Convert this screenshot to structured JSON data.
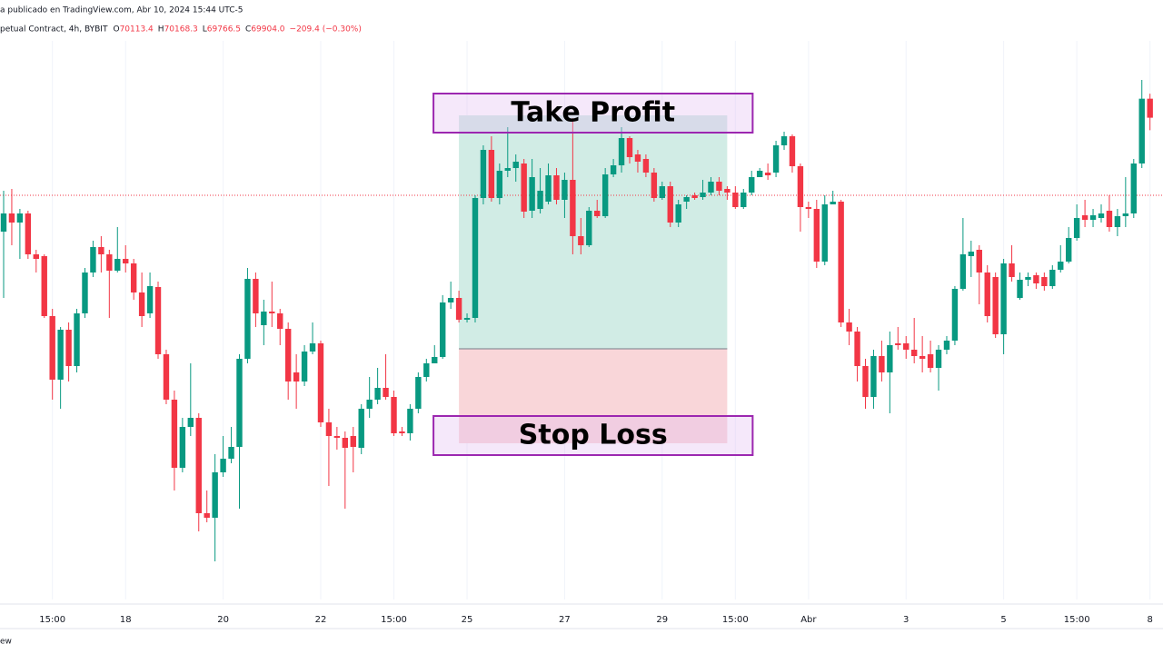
{
  "header": {
    "published": "a publicado en TradingView.com, Abr 10, 2024 15:44 UTC-5",
    "symbol": "petual Contract, 4h, BYBIT",
    "legend": [
      {
        "label": "O",
        "value": "70113.4"
      },
      {
        "label": "H",
        "value": "70168.3"
      },
      {
        "label": "L",
        "value": "69766.5"
      },
      {
        "label": "C",
        "value": "69904.0"
      }
    ],
    "change": "−209.4 (−0.30%)"
  },
  "footer": "ew",
  "chart_data": {
    "type": "candlestick",
    "up_color": "#089981",
    "down_color": "#f23645",
    "ylim": [
      64600,
      71200
    ],
    "xlim": [
      0,
      142.6
    ],
    "xticks": [
      {
        "value": 6,
        "label": "15:00"
      },
      {
        "value": 15,
        "label": "18"
      },
      {
        "value": 27,
        "label": "20"
      },
      {
        "value": 39,
        "label": "22"
      },
      {
        "value": 48,
        "label": "15:00"
      },
      {
        "value": 57,
        "label": "25"
      },
      {
        "value": 69,
        "label": "27"
      },
      {
        "value": 81,
        "label": "29"
      },
      {
        "value": 90,
        "label": "15:00"
      },
      {
        "value": 99,
        "label": "Abr"
      },
      {
        "value": 111,
        "label": "3"
      },
      {
        "value": 123,
        "label": "5"
      },
      {
        "value": 132,
        "label": "15:00"
      },
      {
        "value": 141,
        "label": "8"
      }
    ],
    "grid": true,
    "price_line": 69050,
    "position": {
      "start": 56,
      "end": 89,
      "take_profit": 69930,
      "entry": 67360,
      "stop_loss": 66320,
      "take_profit_label": "Take Profit",
      "stop_loss_label": "Stop Loss",
      "profit_color": "#d1ece5",
      "loss_color": "#f9d6d9",
      "label_color": "#9c27b0"
    },
    "open": [
      68650,
      68850,
      68750,
      68850,
      68400,
      68380,
      67720,
      67020,
      67570,
      67170,
      67750,
      68200,
      68480,
      68400,
      68220,
      68350,
      68300,
      67980,
      67750,
      68040,
      67300,
      66800,
      66050,
      66500,
      66600,
      65550,
      65500,
      66000,
      66150,
      66280,
      67250,
      68130,
      67620,
      67770,
      67750,
      67580,
      67100,
      67000,
      67330,
      67420,
      66550,
      66400,
      66380,
      66400,
      66270,
      66700,
      66800,
      66930,
      66830,
      66450,
      66430,
      66700,
      67050,
      67200,
      67270,
      67870,
      67920,
      67680,
      67700,
      69020,
      69550,
      69020,
      69320,
      69350,
      69400,
      68880,
      68900,
      68980,
      69270,
      69000,
      69220,
      68600,
      68500,
      68880,
      68820,
      69280,
      69380,
      69680,
      69500,
      69450,
      69300,
      69020,
      69150,
      68750,
      68980,
      69050,
      69030,
      69080,
      69200,
      69120,
      69080,
      68920,
      69080,
      69250,
      69300,
      69300,
      69600,
      69700,
      69370,
      68920,
      68900,
      68320,
      68950,
      68980,
      67650,
      67550,
      67170,
      66830,
      67280,
      67100,
      67420,
      67420,
      67350,
      67280,
      67300,
      67150,
      67350,
      67450,
      68020,
      68380,
      68450,
      68200,
      68150,
      67520,
      68300,
      67920,
      68120,
      68170,
      68150,
      68050,
      68230,
      68320,
      68580,
      68830,
      68780,
      68800,
      68880,
      68700,
      68820,
      68850,
      69400,
      70113.4
    ],
    "high": [
      69100,
      69120,
      68900,
      68880,
      68450,
      68400,
      67800,
      67600,
      67650,
      67800,
      68250,
      68550,
      68600,
      68450,
      68700,
      68500,
      68350,
      68200,
      68200,
      68100,
      67350,
      66900,
      66600,
      67200,
      66650,
      65800,
      66200,
      66400,
      66500,
      67300,
      68250,
      68200,
      67900,
      68100,
      67800,
      67650,
      67300,
      67400,
      67650,
      67450,
      66700,
      66500,
      66450,
      66500,
      66750,
      67050,
      67150,
      67300,
      66900,
      66500,
      66750,
      67100,
      67250,
      67400,
      67950,
      68100,
      68000,
      67750,
      69050,
      69600,
      69700,
      69400,
      69800,
      69500,
      69450,
      69450,
      69350,
      69400,
      69350,
      69300,
      69900,
      68800,
      68920,
      69000,
      69350,
      69450,
      69800,
      69700,
      69550,
      69500,
      69350,
      69200,
      69200,
      69000,
      69050,
      69080,
      69220,
      69250,
      69250,
      69150,
      69150,
      69120,
      69320,
      69350,
      69400,
      69650,
      69750,
      69720,
      69400,
      68980,
      69000,
      69050,
      69100,
      69000,
      67800,
      67600,
      67250,
      67350,
      67450,
      67550,
      67600,
      67500,
      67700,
      67500,
      67450,
      67400,
      67500,
      68050,
      68800,
      68550,
      68500,
      68280,
      68200,
      68350,
      68500,
      68200,
      68200,
      68200,
      68200,
      68280,
      68500,
      68700,
      68950,
      69000,
      68900,
      68950,
      69050,
      68900,
      69250,
      69450,
      70320,
      70168.3
    ],
    "low": [
      67920,
      68500,
      68350,
      68350,
      68200,
      67700,
      66800,
      66700,
      67000,
      67100,
      67700,
      68150,
      68200,
      67700,
      68200,
      68200,
      67900,
      67600,
      67700,
      67250,
      66750,
      65800,
      66000,
      66400,
      65350,
      65450,
      65020,
      65950,
      66100,
      65600,
      67200,
      67600,
      67400,
      67600,
      67400,
      66800,
      66700,
      66950,
      67300,
      66500,
      65850,
      66250,
      65600,
      66000,
      66200,
      66600,
      66750,
      66800,
      66400,
      66400,
      66350,
      66650,
      67000,
      67200,
      67250,
      67800,
      67650,
      67650,
      67650,
      68950,
      68980,
      68950,
      69250,
      69200,
      68800,
      68800,
      68850,
      68950,
      68950,
      68800,
      68400,
      68400,
      68480,
      68800,
      68800,
      69250,
      69300,
      69400,
      69300,
      69250,
      68980,
      69000,
      68700,
      68700,
      68900,
      69000,
      69000,
      69050,
      69050,
      69000,
      68900,
      68900,
      69050,
      69250,
      69220,
      69250,
      69550,
      69300,
      68650,
      68800,
      68250,
      68280,
      68950,
      67600,
      67400,
      67000,
      66700,
      66700,
      67000,
      66650,
      67350,
      67250,
      67200,
      67100,
      67100,
      66900,
      67300,
      67400,
      68000,
      68150,
      67850,
      67650,
      67480,
      67300,
      68100,
      67900,
      68050,
      68020,
      68000,
      68020,
      68200,
      68300,
      68550,
      68700,
      68700,
      68750,
      68650,
      68600,
      68700,
      68800,
      69350,
      69766.5
    ],
    "close": [
      68850,
      68750,
      68850,
      68400,
      68350,
      67720,
      67020,
      67570,
      67170,
      67750,
      68200,
      68480,
      68400,
      68220,
      68350,
      68300,
      67980,
      67720,
      68050,
      67300,
      66800,
      66050,
      66500,
      66600,
      65550,
      65500,
      66000,
      66150,
      66280,
      67250,
      68130,
      67750,
      67770,
      67750,
      67580,
      67000,
      67000,
      67330,
      67420,
      66550,
      66400,
      66380,
      66270,
      66280,
      66700,
      66800,
      66930,
      66830,
      66430,
      66430,
      66700,
      67050,
      67200,
      67270,
      67870,
      67920,
      67680,
      67700,
      69020,
      69550,
      69020,
      69320,
      69350,
      69420,
      68870,
      69250,
      69100,
      69270,
      69000,
      69220,
      68600,
      68500,
      68880,
      68820,
      69280,
      69380,
      69680,
      69470,
      69420,
      69300,
      69020,
      69150,
      68750,
      68950,
      69030,
      69020,
      69080,
      69200,
      69100,
      69080,
      68920,
      69080,
      69250,
      69320,
      69270,
      69600,
      69700,
      69370,
      68920,
      68900,
      68320,
      68950,
      68980,
      67650,
      67550,
      67170,
      66830,
      67280,
      67100,
      67400,
      67400,
      67350,
      67280,
      67250,
      67150,
      67350,
      67450,
      68020,
      68400,
      68430,
      68200,
      67720,
      67520,
      68300,
      68150,
      68120,
      68150,
      68080,
      68050,
      68230,
      68320,
      68580,
      68800,
      68780,
      68830,
      68850,
      68700,
      68820,
      68850,
      69400,
      70113.4,
      69904.0
    ]
  }
}
